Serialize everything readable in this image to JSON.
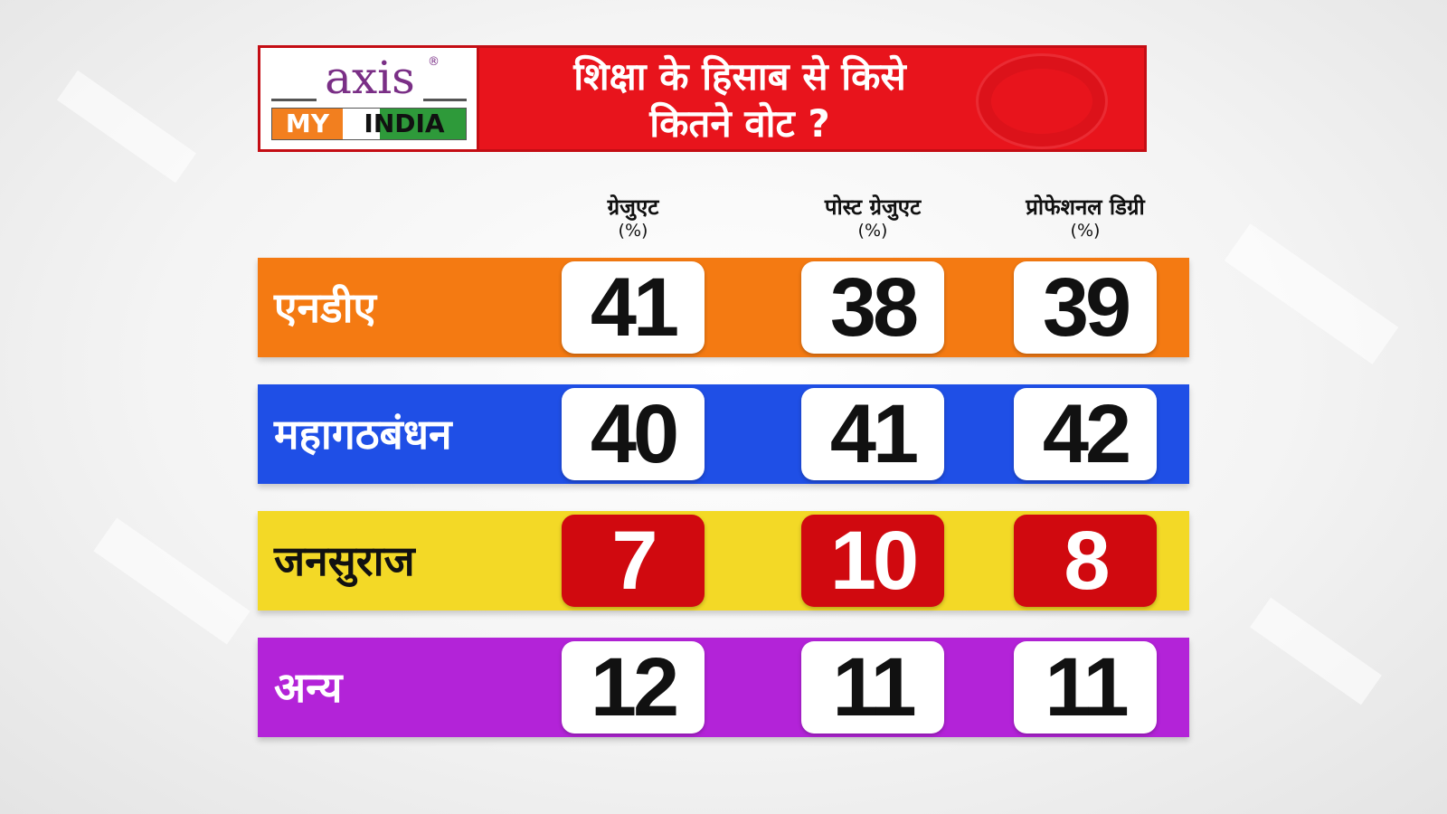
{
  "header": {
    "title_line1": "शिक्षा के हिसाब से किसे",
    "title_line2": "कितने वोट ?",
    "logo": {
      "word": "axis",
      "reg": "®",
      "my": "MY",
      "india": "INDIA"
    }
  },
  "colors": {
    "header_red": "#e8141c",
    "nda_orange": "#f47a12",
    "mgb_blue": "#1f4fe6",
    "jansuraaj_yellow": "#f3d926",
    "other_purple": "#b323d8",
    "highlight_red": "#d0090f"
  },
  "chart_data": {
    "type": "table",
    "title": "शिक्षा के हिसाब से किसे कितने वोट ?",
    "columns": [
      {
        "name": "ग्रेजुएट",
        "unit": "(%)"
      },
      {
        "name": "पोस्ट ग्रेजुएट",
        "unit": "(%)"
      },
      {
        "name": "प्रोफेशनल डिग्री",
        "unit": "(%)"
      }
    ],
    "series": [
      {
        "name": "एनडीए",
        "values": [
          41,
          38,
          39
        ],
        "color": "#f47a12",
        "label_color": "#ffffff",
        "cell_style": "white"
      },
      {
        "name": "महागठबंधन",
        "values": [
          40,
          41,
          42
        ],
        "color": "#1f4fe6",
        "label_color": "#ffffff",
        "cell_style": "white"
      },
      {
        "name": "जनसुराज",
        "values": [
          7,
          10,
          8
        ],
        "color": "#f3d926",
        "label_color": "#111111",
        "cell_style": "red"
      },
      {
        "name": "अन्य",
        "values": [
          12,
          11,
          11
        ],
        "color": "#b323d8",
        "label_color": "#ffffff",
        "cell_style": "white"
      }
    ]
  }
}
